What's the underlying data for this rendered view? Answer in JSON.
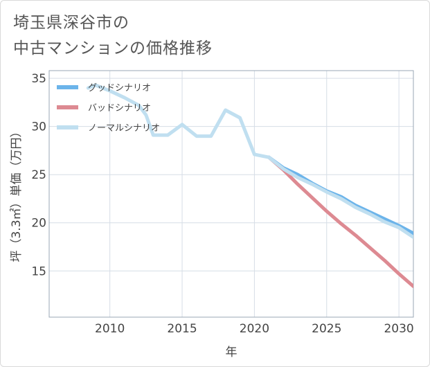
{
  "title": {
    "line1": "埼玉県深谷市の",
    "line2": "中古マンションの価格推移"
  },
  "chart_data": {
    "type": "line",
    "xlabel": "年",
    "ylabel": "坪（3.3㎡）単価（万円）",
    "xlim": [
      2005.8,
      2031.0
    ],
    "ylim": [
      10.2,
      35.8
    ],
    "x_ticks": [
      2010,
      2015,
      2020,
      2025,
      2030
    ],
    "x_tick_labels": [
      "2010",
      "2015",
      "2020",
      "2025",
      "2030"
    ],
    "y_ticks": [
      15,
      20,
      25,
      30,
      35
    ],
    "y_tick_labels": [
      "15",
      "20",
      "25",
      "30",
      "35"
    ],
    "grid": true,
    "legend_position": "top-left",
    "series": [
      {
        "name": "グッドシナリオ",
        "color": "#6cb4ea",
        "x": [
          2021,
          2022,
          2023,
          2024,
          2025,
          2026,
          2027,
          2028,
          2029,
          2030,
          2031
        ],
        "y": [
          26.8,
          25.7,
          25.0,
          24.1,
          23.3,
          22.7,
          21.8,
          21.1,
          20.4,
          19.7,
          18.9
        ]
      },
      {
        "name": "バッドシナリオ",
        "color": "#dd8a92",
        "x": [
          2021,
          2022,
          2023,
          2024,
          2025,
          2026,
          2027,
          2028,
          2029,
          2030,
          2031
        ],
        "y": [
          26.8,
          25.5,
          24.0,
          22.6,
          21.2,
          19.9,
          18.7,
          17.4,
          16.1,
          14.7,
          13.4
        ]
      },
      {
        "name": "ノーマルシナリオ",
        "color": "#c0dff0",
        "x": [
          2008.5,
          2009,
          2010,
          2011,
          2012,
          2012.5,
          2013,
          2014,
          2015,
          2016,
          2017,
          2018,
          2019,
          2020,
          2021,
          2022,
          2023,
          2024,
          2025,
          2026,
          2027,
          2028,
          2029,
          2030,
          2031
        ],
        "y": [
          34.0,
          34.3,
          33.7,
          33.0,
          32.2,
          31.2,
          29.1,
          29.1,
          30.2,
          29.0,
          29.0,
          31.7,
          30.9,
          27.1,
          26.8,
          25.6,
          24.7,
          24.0,
          23.2,
          22.5,
          21.6,
          20.9,
          20.1,
          19.5,
          18.5
        ]
      }
    ]
  }
}
